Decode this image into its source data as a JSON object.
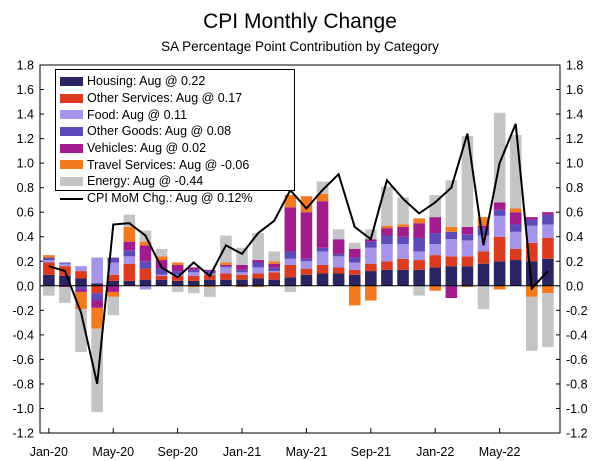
{
  "chart_data": {
    "type": "bar",
    "title": "CPI Monthly Change",
    "subtitle": "SA Percentage Point Contribution by Category",
    "ylim": [
      -1.2,
      1.8
    ],
    "yticks": [
      "1.8",
      "1.6",
      "1.4",
      "1.2",
      "1.0",
      "0.8",
      "0.6",
      "0.4",
      "0.2",
      "0.0",
      "-0.2",
      "-0.4",
      "-0.6",
      "-0.8",
      "-1.0",
      "-1.2"
    ],
    "x_tick_labels": [
      "Jan-20",
      "May-20",
      "Sep-20",
      "Jan-21",
      "May-21",
      "Sep-21",
      "Jan-22",
      "May-22"
    ],
    "x_tick_index": [
      0,
      4,
      8,
      12,
      16,
      20,
      24,
      28
    ],
    "categories": [
      "Jan-20",
      "Feb-20",
      "Mar-20",
      "Apr-20",
      "May-20",
      "Jun-20",
      "Jul-20",
      "Aug-20",
      "Sep-20",
      "Oct-20",
      "Nov-20",
      "Dec-20",
      "Jan-21",
      "Feb-21",
      "Mar-21",
      "Apr-21",
      "May-21",
      "Jun-21",
      "Jul-21",
      "Aug-21",
      "Sep-21",
      "Oct-21",
      "Nov-21",
      "Dec-21",
      "Jan-22",
      "Feb-22",
      "Mar-22",
      "Apr-22",
      "May-22",
      "Jun-22",
      "Jul-22",
      "Aug-22"
    ],
    "series": [
      {
        "name": "Housing",
        "color": "#2b2463",
        "values": [
          0.09,
          0.08,
          0.06,
          0.02,
          0.04,
          0.04,
          0.05,
          0.05,
          0.04,
          0.04,
          0.05,
          0.05,
          0.05,
          0.06,
          0.05,
          0.07,
          0.09,
          0.1,
          0.1,
          0.09,
          0.12,
          0.13,
          0.13,
          0.13,
          0.15,
          0.16,
          0.16,
          0.18,
          0.2,
          0.21,
          0.2,
          0.22
        ]
      },
      {
        "name": "Other Services",
        "color": "#dd3b1f",
        "values": [
          0.1,
          0.08,
          0.06,
          -0.06,
          0.05,
          0.14,
          0.09,
          0.03,
          0.04,
          0.04,
          0.04,
          0.05,
          0.04,
          0.04,
          0.06,
          0.1,
          0.05,
          0.07,
          0.05,
          0.04,
          0.06,
          0.07,
          0.09,
          0.08,
          0.1,
          0.08,
          0.08,
          0.1,
          0.2,
          0.09,
          0.15,
          0.17
        ]
      },
      {
        "name": "Food",
        "color": "#a594ea",
        "values": [
          0.02,
          0.02,
          0.04,
          0.21,
          0.1,
          0.06,
          -0.03,
          0.01,
          0.01,
          0.03,
          0.01,
          0.05,
          0.02,
          0.05,
          0.01,
          0.05,
          0.06,
          0.11,
          0.09,
          0.06,
          0.13,
          0.14,
          0.12,
          0.07,
          0.09,
          0.14,
          0.13,
          0.13,
          0.17,
          0.14,
          0.14,
          0.11
        ]
      },
      {
        "name": "Other Goods",
        "color": "#5e4ab8",
        "values": [
          0.02,
          0.01,
          -0.03,
          -0.06,
          0.04,
          0.05,
          0.06,
          0.05,
          0.03,
          0.02,
          0.02,
          0.01,
          0.02,
          0.04,
          0.03,
          0.06,
          0.02,
          0.03,
          0.02,
          0.04,
          0.05,
          0.07,
          0.06,
          0.11,
          0.09,
          0.06,
          0.05,
          0.06,
          0.05,
          0.06,
          0.05,
          0.08
        ]
      },
      {
        "name": "Vehicles",
        "color": "#a21c8e",
        "values": [
          0.0,
          -0.01,
          -0.02,
          -0.06,
          -0.05,
          0.07,
          0.13,
          0.07,
          0.05,
          0.02,
          0.01,
          0.01,
          0.04,
          0.02,
          0.03,
          0.36,
          0.38,
          0.38,
          0.12,
          0.07,
          0.02,
          0.06,
          0.08,
          0.12,
          0.13,
          -0.1,
          0.06,
          0.02,
          0.06,
          0.1,
          0.02,
          0.02
        ]
      },
      {
        "name": "Travel Services",
        "color": "#f47a20",
        "values": [
          0.02,
          0.0,
          -0.14,
          -0.17,
          -0.04,
          0.12,
          0.03,
          0.03,
          0.02,
          -0.01,
          -0.01,
          0.02,
          -0.01,
          -0.01,
          0.02,
          0.1,
          0.13,
          0.06,
          0.0,
          -0.16,
          -0.12,
          0.02,
          0.02,
          0.04,
          -0.04,
          0.04,
          -0.01,
          0.07,
          -0.03,
          0.03,
          -0.09,
          -0.06
        ]
      },
      {
        "name": "Energy",
        "color": "#c4c4c4",
        "values": [
          -0.08,
          -0.13,
          -0.35,
          -0.68,
          -0.15,
          0.1,
          0.09,
          0.06,
          -0.05,
          -0.05,
          -0.08,
          0.22,
          0.14,
          0.22,
          0.08,
          -0.05,
          0.0,
          0.1,
          0.08,
          0.05,
          0.08,
          0.32,
          0.22,
          -0.08,
          0.18,
          0.38,
          0.74,
          -0.19,
          0.73,
          0.6,
          -0.44,
          -0.44
        ]
      }
    ],
    "line": {
      "name": "CPI MoM Chg.",
      "color": "#000000",
      "values": [
        0.16,
        0.12,
        -0.22,
        -0.8,
        0.5,
        0.51,
        0.41,
        0.15,
        0.07,
        0.19,
        0.08,
        0.33,
        0.26,
        0.43,
        0.53,
        0.78,
        0.63,
        0.78,
        0.91,
        0.48,
        0.38,
        0.86,
        0.71,
        0.59,
        0.68,
        0.8,
        1.24,
        0.33,
        1.0,
        1.32,
        -0.02,
        0.12
      ]
    }
  },
  "legend": [
    {
      "label": "Housing: Aug @ 0.22",
      "color": "#2b2463",
      "kind": "bar"
    },
    {
      "label": "Other Services: Aug @ 0.17",
      "color": "#dd3b1f",
      "kind": "bar"
    },
    {
      "label": "Food: Aug @ 0.11",
      "color": "#a594ea",
      "kind": "bar"
    },
    {
      "label": "Other Goods: Aug @ 0.08",
      "color": "#5e4ab8",
      "kind": "bar"
    },
    {
      "label": "Vehicles: Aug @ 0.02",
      "color": "#a21c8e",
      "kind": "bar"
    },
    {
      "label": "Travel Services: Aug @ -0.06",
      "color": "#f47a20",
      "kind": "bar"
    },
    {
      "label": "Energy: Aug @ -0.44",
      "color": "#c4c4c4",
      "kind": "bar"
    },
    {
      "label": "CPI MoM Chg.: Aug @ 0.12%",
      "color": "#000000",
      "kind": "line"
    }
  ]
}
